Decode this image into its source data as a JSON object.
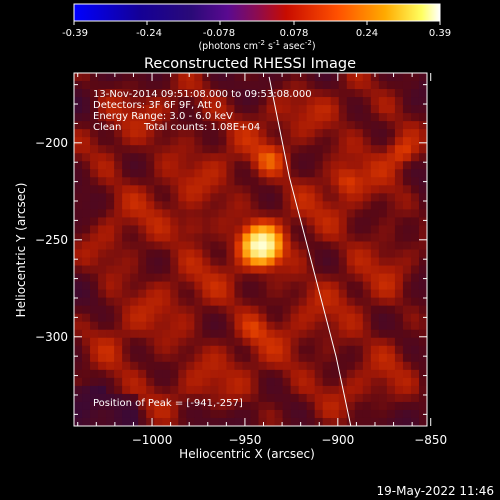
{
  "colorbar": {
    "ticks": [
      "-0.39",
      "-0.24",
      "-0.078",
      "0.078",
      "0.24",
      "0.39"
    ],
    "label_main": "(photons cm",
    "label_exp1": "-2",
    "label_mid1": " s",
    "label_exp2": "-1",
    "label_mid2": " asec",
    "label_exp3": "-2",
    "label_close": ")"
  },
  "title": "Reconstructed RHESSI Image",
  "annotations": {
    "time_range": "13-Nov-2014 09:51:08.000 to 09:53:08.000",
    "detectors": "Detectors: 3F 6F 9F, Att 0",
    "energy_range": "Energy Range: 3.0 - 6.0 keV",
    "clean_label": "Clean",
    "total_counts": "Total counts: 1.08E+04",
    "peak_position": "Position of Peak = [-941,-257]"
  },
  "footer": {
    "date": "19-May-2022 11:46"
  },
  "chart_data": {
    "type": "heatmap",
    "title": "Reconstructed RHESSI Image",
    "xlabel": "Heliocentric X (arcsec)",
    "ylabel": "Heliocentric Y (arcsec)",
    "xlim": [
      -1042,
      -852
    ],
    "ylim": [
      -346,
      -164
    ],
    "xticks": [
      -1000,
      -950,
      -900,
      -850
    ],
    "yticks": [
      -200,
      -250,
      -300
    ],
    "xtick_labels": [
      "−1000",
      "−950",
      "−900",
      "−850"
    ],
    "ytick_labels": [
      "−200",
      "−250",
      "−300"
    ],
    "colorbar_range": [
      -0.39,
      0.39
    ],
    "peak": [
      -941,
      -257
    ],
    "secondary_sources": [
      {
        "x": -937,
        "y": -211,
        "intensity": 0.17
      },
      {
        "x": -865,
        "y": -207,
        "intensity": 0.16
      },
      {
        "x": -895,
        "y": -222,
        "intensity": 0.13
      },
      {
        "x": -978,
        "y": -247,
        "intensity": 0.12
      },
      {
        "x": -945,
        "y": -302,
        "intensity": 0.1
      }
    ],
    "limb_curve": {
      "x": [
        -937,
        -926,
        -914,
        -901,
        -893
      ],
      "y": [
        -166,
        -218,
        -262,
        -310,
        -346
      ]
    },
    "colors": {
      "background_low": "#1e0a50",
      "mid": "#a01400",
      "high": "#ff8c00",
      "peak": "#ffffc8"
    }
  }
}
